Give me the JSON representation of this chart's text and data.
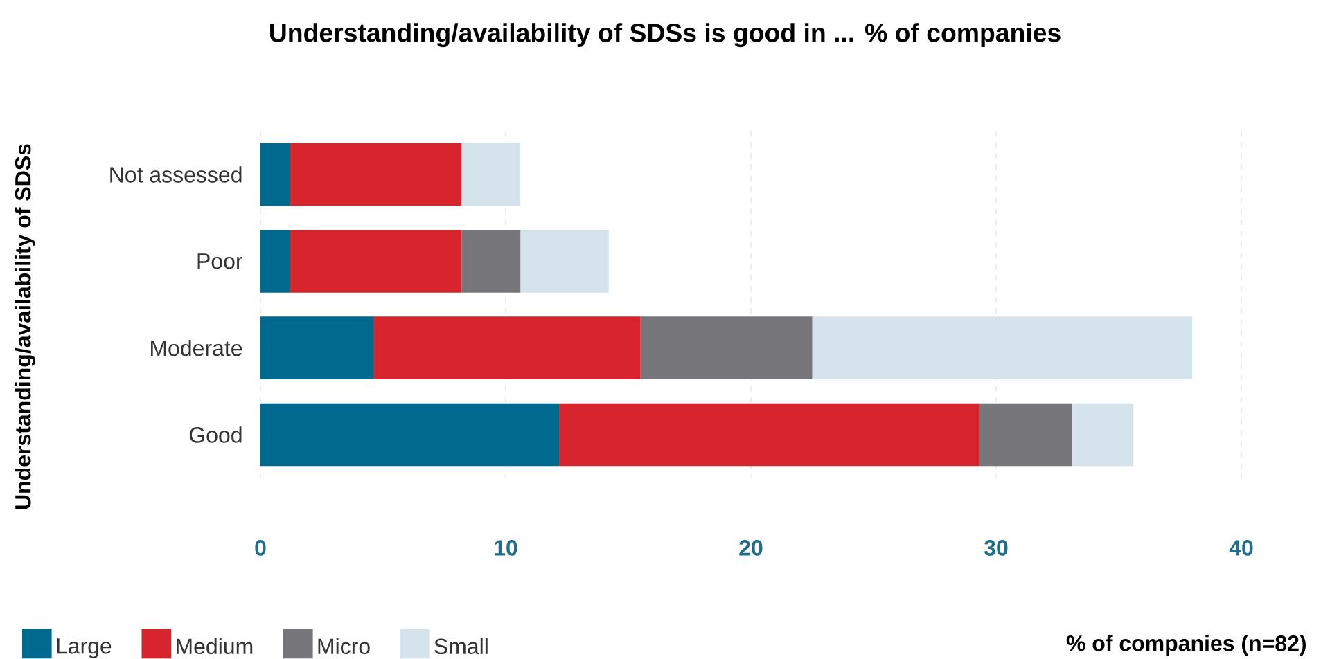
{
  "chart_data": {
    "type": "bar",
    "orientation": "horizontal",
    "stacked": true,
    "title": "Understanding/availability of SDSs is good in ... % of companies",
    "ylabel": "Understanding/availability of SDSs",
    "xlabel": "% of companies (n=82)",
    "categories": [
      "Not assessed",
      "Poor",
      "Moderate",
      "Good"
    ],
    "series": [
      {
        "name": "Large",
        "color": "#006a8e",
        "values": [
          1.2,
          1.2,
          4.6,
          12.2
        ]
      },
      {
        "name": "Medium",
        "color": "#d7242d",
        "values": [
          7.0,
          7.0,
          10.9,
          17.1
        ]
      },
      {
        "name": "Micro",
        "color": "#77777b",
        "values": [
          0,
          2.4,
          7.0,
          3.8
        ]
      },
      {
        "name": "Small",
        "color": "#d5e3ec",
        "values": [
          2.4,
          3.6,
          15.5,
          2.5
        ]
      }
    ],
    "xlim": [
      0,
      40
    ],
    "xticks": [
      0,
      10,
      20,
      30,
      40
    ],
    "grid": "x",
    "legend": "bottom left"
  }
}
